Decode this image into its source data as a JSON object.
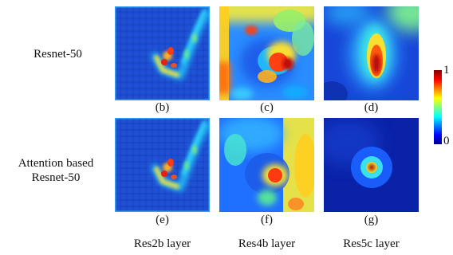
{
  "figure": {
    "row_labels": [
      {
        "lines": [
          "Resnet-50"
        ]
      },
      {
        "lines": [
          "Attention based",
          "Resnet-50"
        ]
      }
    ],
    "panel_labels": [
      "(b)",
      "(c)",
      "(d)",
      "(e)",
      "(f)",
      "(g)"
    ],
    "column_labels": [
      "Res2b layer",
      "Res4b layer",
      "Res5c layer"
    ],
    "colorbar": {
      "max_label": "1",
      "min_label": "0",
      "colormap": "jet"
    },
    "colors": {
      "jet": [
        "#00007f",
        "#0000ff",
        "#007fff",
        "#00ffff",
        "#7fff7f",
        "#ffff00",
        "#ff7f00",
        "#ff0000",
        "#7f0000"
      ]
    }
  },
  "panels": [
    {
      "id": "b",
      "row": "Resnet-50",
      "layer": "Res2b layer",
      "description": "low-level edge activations tracing a check-mark shaped stroke"
    },
    {
      "id": "c",
      "row": "Resnet-50",
      "layer": "Res4b layer",
      "description": "mid-level blob activation with strong top and left borders"
    },
    {
      "id": "d",
      "row": "Resnet-50",
      "layer": "Res5c layer",
      "description": "high-level elongated hot spot near center"
    },
    {
      "id": "e",
      "row": "Attention based Resnet-50",
      "layer": "Res2b layer",
      "description": "low-level edge activations tracing a check-mark shaped stroke"
    },
    {
      "id": "f",
      "row": "Attention based Resnet-50",
      "layer": "Res4b layer",
      "description": "mid-level activation with strong right region"
    },
    {
      "id": "g",
      "row": "Attention based Resnet-50",
      "layer": "Res5c layer",
      "description": "compact focused hot spot at center"
    }
  ]
}
